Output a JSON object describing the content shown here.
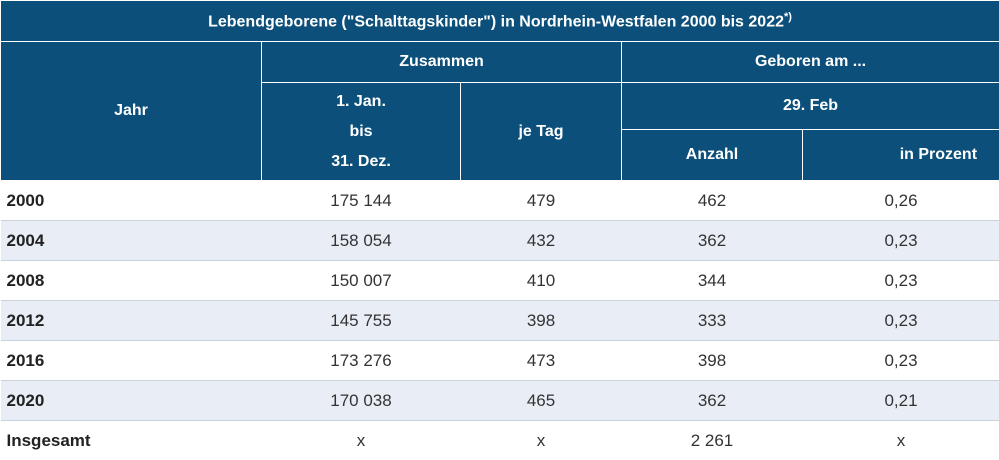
{
  "title": "Lebendgeborene (\"Schalttagskinder\") in Nordrhein-Westfalen 2000 bis 2022",
  "title_footnote_mark": "*)",
  "header": {
    "jahr": "Jahr",
    "zusammen": "Zusammen",
    "period_line1": "1. Jan.",
    "period_line2": "bis",
    "period_line3": "31. Dez.",
    "je_tag": "je Tag",
    "geboren_am": "Geboren am ...",
    "feb29": "29. Feb",
    "anzahl": "Anzahl",
    "in_prozent": "in Prozent"
  },
  "rows": [
    {
      "year": "2000",
      "total": "175 144",
      "per_day": "479",
      "count": "462",
      "percent": "0,26"
    },
    {
      "year": "2004",
      "total": "158 054",
      "per_day": "432",
      "count": "362",
      "percent": "0,23"
    },
    {
      "year": "2008",
      "total": "150 007",
      "per_day": "410",
      "count": "344",
      "percent": "0,23"
    },
    {
      "year": "2012",
      "total": "145 755",
      "per_day": "398",
      "count": "333",
      "percent": "0,23"
    },
    {
      "year": "2016",
      "total": "173 276",
      "per_day": "473",
      "count": "398",
      "percent": "0,23"
    },
    {
      "year": "2020",
      "total": "170 038",
      "per_day": "465",
      "count": "362",
      "percent": "0,21"
    },
    {
      "year": "Insgesamt",
      "total": "x",
      "per_day": "x",
      "count": "2 261",
      "percent": "x"
    }
  ],
  "colors": {
    "header_bg": "#0b4f7a",
    "stripe_bg": "#e9eef6"
  }
}
